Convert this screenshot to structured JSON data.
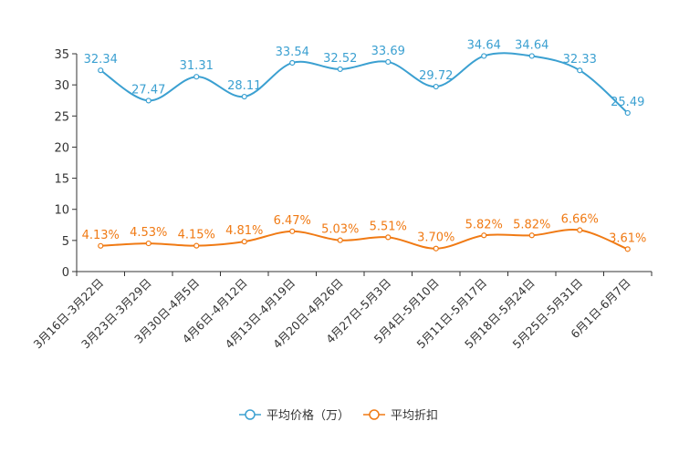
{
  "chart_data": {
    "type": "line",
    "title": "",
    "xlabel": "",
    "ylabel": "",
    "ylim": [
      0,
      35
    ],
    "yticks": [
      0,
      5,
      10,
      15,
      20,
      25,
      30,
      35
    ],
    "grid": false,
    "legend_position": "bottom-center",
    "categories": [
      "3月16日-3月22日",
      "3月23日-3月29日",
      "3月30日-4月5日",
      "4月6日-4月12日",
      "4月13日-4月19日",
      "4月20日-4月26日",
      "4月27日-5月3日",
      "5月4日-5月10日",
      "5月11日-5月17日",
      "5月18日-5月24日",
      "5月25日-5月31日",
      "6月1日-6月7日"
    ],
    "series": [
      {
        "name": "平均价格（万）",
        "color": "#3ba0d1",
        "values": [
          32.34,
          27.47,
          31.31,
          28.11,
          33.54,
          32.52,
          33.69,
          29.72,
          34.64,
          34.64,
          32.33,
          25.49
        ],
        "labels": [
          "32.34",
          "27.47",
          "31.31",
          "28.11",
          "33.54",
          "32.52",
          "33.69",
          "29.72",
          "34.64",
          "34.64",
          "32.33",
          "25.49"
        ]
      },
      {
        "name": "平均折扣",
        "color": "#f07a14",
        "values": [
          4.13,
          4.53,
          4.15,
          4.81,
          6.47,
          5.03,
          5.51,
          3.7,
          5.82,
          5.82,
          6.66,
          3.61
        ],
        "labels": [
          "4.13%",
          "4.53%",
          "4.15%",
          "4.81%",
          "6.47%",
          "5.03%",
          "5.51%",
          "3.70%",
          "5.82%",
          "5.82%",
          "6.66%",
          "3.61%"
        ]
      }
    ]
  }
}
